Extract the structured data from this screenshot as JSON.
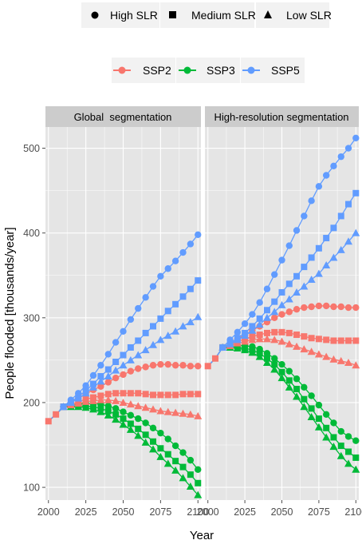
{
  "legend_slr": {
    "items": [
      {
        "label": "High SLR",
        "shape": "circle"
      },
      {
        "label": "Medium SLR",
        "shape": "square"
      },
      {
        "label": "Low SLR",
        "shape": "triangle"
      }
    ]
  },
  "legend_ssp": {
    "items": [
      {
        "label": "SSP2",
        "color": "#F8766D"
      },
      {
        "label": "SSP3",
        "color": "#00BA38"
      },
      {
        "label": "SSP5",
        "color": "#619CFF"
      }
    ]
  },
  "axes": {
    "ylabel": "People flooded [thousands/year]",
    "xlabel": "Year"
  },
  "colors": {
    "panel_bg": "#E5E5E5",
    "grid": "#FFFFFF",
    "strip_bg": "#CCCCCC",
    "SSP2": "#F8766D",
    "SSP3": "#00BA38",
    "SSP5": "#619CFF"
  },
  "chart_data": {
    "type": "line",
    "x_ticks": [
      2000,
      2025,
      2050,
      2075,
      2100
    ],
    "y_ticks": [
      100,
      200,
      300,
      400,
      500
    ],
    "xlim": [
      1998,
      2102
    ],
    "ylim": [
      85,
      525
    ],
    "markers": {
      "High SLR": "circle",
      "Medium SLR": "square",
      "Low SLR": "triangle"
    },
    "panels": [
      {
        "title": "Global  segmentation",
        "history": {
          "x": [
            2000,
            2005
          ],
          "y": [
            178,
            186
          ]
        },
        "x": [
          2010,
          2015,
          2020,
          2025,
          2030,
          2035,
          2040,
          2045,
          2050,
          2055,
          2060,
          2065,
          2070,
          2075,
          2080,
          2085,
          2090,
          2095,
          2100
        ],
        "series": [
          {
            "ssp": "SSP5",
            "slr": "High SLR",
            "values": [
              195,
              203,
              211,
              220,
              232,
              244,
              257,
              271,
              284,
              298,
              311,
              324,
              337,
              349,
              358,
              367,
              377,
              387,
              398
            ]
          },
          {
            "ssp": "SSP5",
            "slr": "Medium SLR",
            "values": [
              195,
              201,
              207,
              214,
              222,
              231,
              239,
              248,
              256,
              265,
              273,
              282,
              290,
              299,
              308,
              316,
              325,
              334,
              344
            ]
          },
          {
            "ssp": "SSP5",
            "slr": "Low SLR",
            "values": [
              195,
              200,
              205,
              211,
              218,
              225,
              231,
              238,
              244,
              250,
              256,
              262,
              268,
              274,
              279,
              284,
              290,
              295,
              301
            ]
          },
          {
            "ssp": "SSP2",
            "slr": "High SLR",
            "values": [
              195,
              200,
              205,
              210,
              215,
              219,
              224,
              229,
              233,
              237,
              240,
              242,
              244,
              245,
              245,
              244,
              244,
              243,
              243
            ]
          },
          {
            "ssp": "SSP2",
            "slr": "Medium SLR",
            "values": [
              195,
              198,
              201,
              204,
              206,
              208,
              210,
              211,
              211,
              211,
              211,
              210,
              209,
              209,
              209,
              209,
              210,
              210,
              210
            ]
          },
          {
            "ssp": "SSP2",
            "slr": "Low SLR",
            "values": [
              195,
              197,
              199,
              201,
              202,
              203,
              203,
              202,
              200,
              198,
              196,
              194,
              192,
              190,
              189,
              188,
              187,
              186,
              184
            ]
          },
          {
            "ssp": "SSP3",
            "slr": "High SLR",
            "values": [
              195,
              197,
              198,
              199,
              199,
              198,
              196,
              193,
              189,
              185,
              181,
              176,
              170,
              164,
              157,
              149,
              141,
              132,
              121
            ]
          },
          {
            "ssp": "SSP3",
            "slr": "Medium SLR",
            "values": [
              195,
              196,
              196,
              196,
              195,
              193,
              190,
              186,
              181,
              175,
              169,
              162,
              154,
              146,
              139,
              131,
              124,
              115,
              105
            ]
          },
          {
            "ssp": "SSP3",
            "slr": "Low SLR",
            "values": [
              195,
              195,
              195,
              194,
              192,
              189,
              185,
              180,
              174,
              168,
              161,
              153,
              145,
              136,
              128,
              120,
              111,
              101,
              91
            ]
          }
        ]
      },
      {
        "title": "High-resolution segmentation",
        "history": {
          "x": [
            2000,
            2005
          ],
          "y": [
            243,
            252
          ]
        },
        "x": [
          2010,
          2015,
          2020,
          2025,
          2030,
          2035,
          2040,
          2045,
          2050,
          2055,
          2060,
          2065,
          2070,
          2075,
          2080,
          2085,
          2090,
          2095,
          2100
        ],
        "series": [
          {
            "ssp": "SSP5",
            "slr": "High SLR",
            "values": [
              265,
              274,
              283,
              293,
              304,
              318,
              334,
              351,
              368,
              385,
              403,
              420,
              438,
              455,
              468,
              479,
              490,
              500,
              512
            ]
          },
          {
            "ssp": "SSP5",
            "slr": "Medium SLR",
            "values": [
              265,
              270,
              276,
              282,
              290,
              299,
              309,
              319,
              330,
              340,
              349,
              360,
              371,
              382,
              394,
              406,
              420,
              434,
              447
            ]
          },
          {
            "ssp": "SSP5",
            "slr": "Low SLR",
            "values": [
              265,
              269,
              274,
              279,
              285,
              292,
              300,
              307,
              315,
              322,
              330,
              337,
              345,
              352,
              362,
              371,
              380,
              390,
              400
            ]
          },
          {
            "ssp": "SSP2",
            "slr": "High SLR",
            "values": [
              265,
              270,
              275,
              280,
              285,
              290,
              295,
              300,
              304,
              307,
              310,
              312,
              313,
              314,
              314,
              313,
              313,
              312,
              312
            ]
          },
          {
            "ssp": "SSP2",
            "slr": "Medium SLR",
            "values": [
              265,
              268,
              272,
              275,
              278,
              280,
              282,
              283,
              283,
              282,
              280,
              278,
              276,
              275,
              274,
              273,
              273,
              273,
              273
            ]
          },
          {
            "ssp": "SSP2",
            "slr": "Low SLR",
            "values": [
              265,
              267,
              270,
              272,
              274,
              275,
              275,
              274,
              272,
              269,
              266,
              263,
              260,
              257,
              254,
              251,
              249,
              247,
              244
            ]
          },
          {
            "ssp": "SSP3",
            "slr": "High SLR",
            "values": [
              265,
              266,
              267,
              267,
              266,
              263,
              258,
              252,
              245,
              237,
              228,
              218,
              208,
              197,
              186,
              176,
              166,
              160,
              155
            ]
          },
          {
            "ssp": "SSP3",
            "slr": "Medium SLR",
            "values": [
              265,
              265,
              265,
              264,
              262,
              258,
              252,
              245,
              236,
              226,
              216,
              204,
              193,
              181,
              170,
              159,
              149,
              142,
              135
            ]
          },
          {
            "ssp": "SSP3",
            "slr": "Low SLR",
            "values": [
              265,
              265,
              264,
              262,
              259,
              254,
              247,
              239,
              229,
              218,
              207,
              195,
              183,
              171,
              159,
              148,
              137,
              128,
              121
            ]
          }
        ]
      }
    ]
  }
}
